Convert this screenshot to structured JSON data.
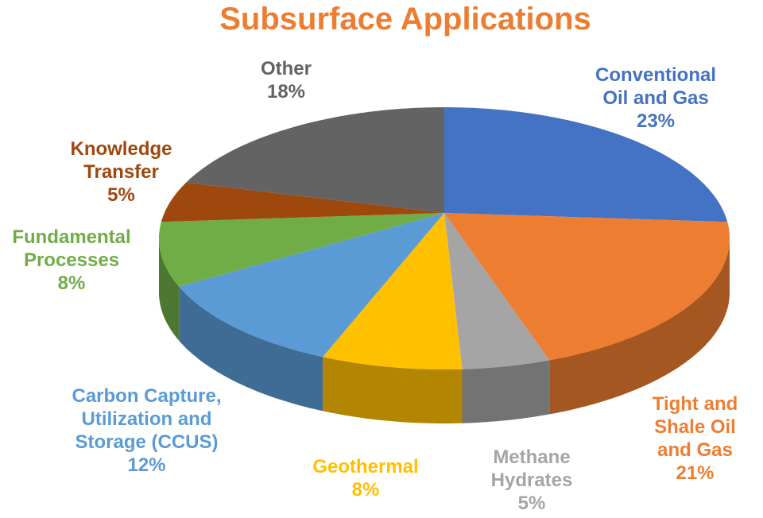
{
  "chart_data": {
    "type": "pie",
    "title": "Subsurface Applications",
    "categories": [
      "Conventional Oil and Gas",
      "Tight and Shale Oil and Gas",
      "Methane Hydrates",
      "Geothermal",
      "Carbon Capture, Utilization and Storage (CCUS)",
      "Fundamental Processes",
      "Knowledge Transfer",
      "Other"
    ],
    "values": [
      23,
      21,
      5,
      8,
      12,
      8,
      5,
      18
    ],
    "value_labels": [
      "23%",
      "21%",
      "5%",
      "8%",
      "12%",
      "8%",
      "5%",
      "18%"
    ],
    "colors": [
      "#4472c4",
      "#ed7d31",
      "#a5a5a5",
      "#ffc000",
      "#5b9bd5",
      "#70ad47",
      "#9e480e",
      "#636363"
    ]
  }
}
